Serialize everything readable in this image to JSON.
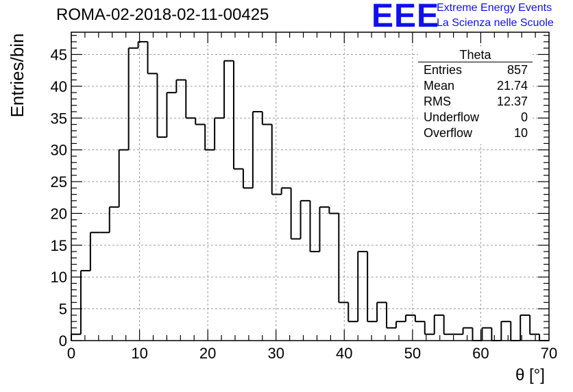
{
  "header": {
    "run_title": "ROMA-02-2018-02-11-00425",
    "logo_text": "EEE",
    "logo_line1": "Extreme Energy Events",
    "logo_line2": "La Scienza nelle Scuole"
  },
  "stats": {
    "title": "Theta",
    "rows": [
      {
        "key": "Entries",
        "value": "857"
      },
      {
        "key": "Mean",
        "value": "21.74"
      },
      {
        "key": "RMS",
        "value": "12.37"
      },
      {
        "key": "Underflow",
        "value": "0"
      },
      {
        "key": "Overflow",
        "value": "10"
      }
    ]
  },
  "chart_data": {
    "type": "bar",
    "style": "step-histogram",
    "xlabel": "θ [°]",
    "ylabel": "Entries/bin",
    "xlim": [
      0,
      70
    ],
    "ylim": [
      0,
      48.5
    ],
    "bin_width": 1.4,
    "x_ticks": [
      0,
      10,
      20,
      30,
      40,
      50,
      60,
      70
    ],
    "y_ticks": [
      0,
      5,
      10,
      15,
      20,
      25,
      30,
      35,
      40,
      45
    ],
    "grid": true,
    "values": [
      1,
      11,
      17,
      17,
      21,
      30,
      46,
      47,
      42,
      32,
      39,
      41,
      35,
      34,
      30,
      35,
      44,
      27,
      24,
      36,
      34,
      23,
      24,
      16,
      22,
      14,
      21,
      20,
      6,
      3,
      14,
      3,
      6,
      2,
      3,
      4,
      3,
      1,
      4,
      1,
      1,
      2,
      0,
      2,
      0,
      3,
      0,
      4,
      1,
      0
    ],
    "line_color": "#000000"
  }
}
